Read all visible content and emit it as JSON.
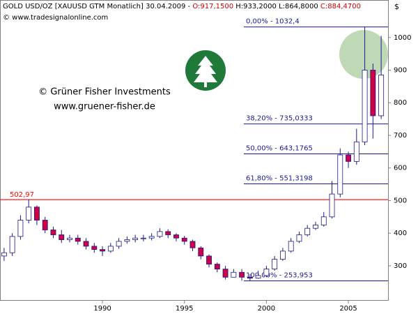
{
  "chart_data": {
    "type": "candlestick",
    "header": {
      "symbol": "GOLD USD/OZ [XAUUSD GTM  Monatlich] 30.04.2009 -",
      "open_label": "O:917,1500",
      "high_low_label": "H:933,2000 L:864,8000",
      "close_label": "C:884,4700",
      "source": "© www.tradesignalonline.com"
    },
    "annotation": [
      "© Grüner Fisher Investments",
      "www.gruener-fisher.de"
    ],
    "y_axis_label": "$",
    "x": [
      1984.0,
      1984.5,
      1985.0,
      1985.5,
      1986.0,
      1986.5,
      1987.0,
      1987.5,
      1988.0,
      1988.5,
      1989.0,
      1989.5,
      1990.0,
      1990.5,
      1991.0,
      1991.5,
      1992.0,
      1992.5,
      1993.0,
      1993.5,
      1994.0,
      1994.5,
      1995.0,
      1995.5,
      1996.0,
      1996.5,
      1997.0,
      1997.5,
      1998.0,
      1998.5,
      1999.0,
      1999.5,
      2000.0,
      2000.5,
      2001.0,
      2001.5,
      2002.0,
      2002.5,
      2003.0,
      2003.5,
      2004.0,
      2004.5,
      2005.0,
      2005.5,
      2006.0,
      2006.5,
      2007.0
    ],
    "open": [
      330,
      340,
      390,
      440,
      480,
      440,
      410,
      395,
      380,
      385,
      375,
      360,
      350,
      345,
      360,
      375,
      380,
      385,
      385,
      390,
      405,
      395,
      385,
      375,
      355,
      330,
      305,
      290,
      265,
      280,
      265,
      262,
      270,
      290,
      320,
      345,
      375,
      395,
      415,
      425,
      450,
      520,
      640,
      620,
      680,
      900,
      760
    ],
    "high": [
      355,
      400,
      455,
      503,
      485,
      450,
      420,
      410,
      395,
      395,
      385,
      370,
      360,
      370,
      385,
      390,
      395,
      395,
      400,
      415,
      412,
      400,
      392,
      380,
      360,
      335,
      310,
      300,
      290,
      290,
      275,
      285,
      300,
      330,
      355,
      385,
      405,
      425,
      435,
      465,
      560,
      660,
      650,
      720,
      1032,
      920,
      1005
    ],
    "low": [
      315,
      330,
      380,
      430,
      425,
      400,
      385,
      370,
      372,
      365,
      350,
      340,
      330,
      340,
      352,
      368,
      372,
      375,
      378,
      385,
      385,
      375,
      365,
      345,
      320,
      295,
      280,
      258,
      268,
      254,
      255,
      260,
      265,
      285,
      315,
      340,
      370,
      390,
      410,
      420,
      445,
      510,
      600,
      610,
      670,
      690,
      750
    ],
    "close": [
      340,
      390,
      440,
      480,
      440,
      410,
      395,
      380,
      385,
      375,
      360,
      350,
      345,
      360,
      375,
      380,
      385,
      385,
      390,
      405,
      395,
      385,
      375,
      355,
      330,
      305,
      290,
      265,
      280,
      265,
      262,
      270,
      290,
      320,
      345,
      375,
      395,
      415,
      425,
      450,
      520,
      640,
      620,
      680,
      900,
      760,
      885
    ],
    "up_color": "#ffffff",
    "down_color": "#cc0044",
    "wick_color": "#1a1a8c",
    "xlim": [
      1983.75,
      2007.42
    ],
    "xticks": [
      1990,
      1995,
      2000,
      2005
    ],
    "ylim": [
      195,
      1115
    ],
    "yticks": [
      300,
      400,
      500,
      600,
      700,
      800,
      900,
      1000
    ],
    "resistance": {
      "value": 502.97,
      "label": "502,97",
      "color": "#ff0000"
    },
    "fib_levels": [
      {
        "value": 1032.4,
        "label": "0,00% - 1032,4"
      },
      {
        "value": 735.0333,
        "label": "38,20% - 735,0333"
      },
      {
        "value": 643.1765,
        "label": "50,00% - 643,1765"
      },
      {
        "value": 551.3198,
        "label": "61,80% - 551,3198"
      },
      {
        "value": 253.953,
        "label": "100,00% - 253,953"
      }
    ],
    "fib_color": "#1a1a8c"
  }
}
